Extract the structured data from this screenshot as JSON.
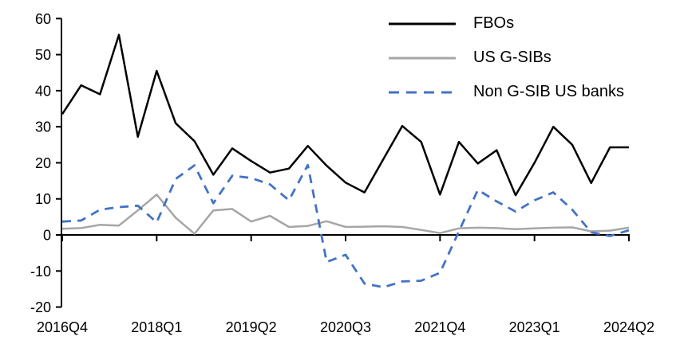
{
  "chart_data": {
    "type": "line",
    "title": "",
    "xlabel": "",
    "ylabel": "",
    "grid": false,
    "legend_position": "top-right",
    "ylim": [
      -20,
      60
    ],
    "y_ticks": [
      60,
      50,
      40,
      30,
      20,
      10,
      0,
      -10,
      -20
    ],
    "x_tick_labels": [
      "2016Q4",
      "2018Q1",
      "2019Q2",
      "2020Q3",
      "2021Q4",
      "2023Q1",
      "2024Q2"
    ],
    "x_tick_every": 5,
    "categories": [
      "2016Q4",
      "2017Q1",
      "2017Q2",
      "2017Q3",
      "2017Q4",
      "2018Q1",
      "2018Q2",
      "2018Q3",
      "2018Q4",
      "2019Q1",
      "2019Q2",
      "2019Q3",
      "2019Q4",
      "2020Q1",
      "2020Q2",
      "2020Q3",
      "2020Q4",
      "2021Q1",
      "2021Q2",
      "2021Q3",
      "2021Q4",
      "2022Q1",
      "2022Q2",
      "2022Q3",
      "2022Q4",
      "2023Q1",
      "2023Q2",
      "2023Q3",
      "2023Q4",
      "2024Q1",
      "2024Q2"
    ],
    "series": [
      {
        "name": "FBOs",
        "color": "#000000",
        "style": "solid",
        "values": [
          33.5,
          41.5,
          39.0,
          55.5,
          27.2,
          45.5,
          31.0,
          26.0,
          16.7,
          24.0,
          20.5,
          17.3,
          18.4,
          24.7,
          19.2,
          14.5,
          11.8,
          21.0,
          30.2,
          25.8,
          11.2,
          25.8,
          19.8,
          23.5,
          11.0,
          20.0,
          30.0,
          25.0,
          14.4,
          24.3,
          24.3
        ]
      },
      {
        "name": "US G-SIBs",
        "color": "#a6a6a6",
        "style": "solid",
        "values": [
          1.7,
          1.9,
          2.8,
          2.6,
          6.8,
          11.2,
          4.8,
          0.3,
          6.8,
          7.2,
          3.7,
          5.3,
          2.2,
          2.5,
          3.8,
          2.2,
          2.3,
          2.4,
          2.2,
          1.4,
          0.5,
          1.8,
          2.0,
          1.9,
          1.6,
          1.8,
          2.0,
          2.1,
          1.0,
          1.2,
          2.0
        ]
      },
      {
        "name": "Non G-SIB US banks",
        "color": "#4472c4",
        "style": "dashed",
        "values": [
          3.7,
          4.0,
          7.0,
          7.7,
          8.1,
          3.5,
          15.5,
          19.3,
          8.8,
          16.4,
          15.8,
          14.0,
          9.6,
          19.4,
          -7.5,
          -5.5,
          -13.5,
          -14.5,
          -12.9,
          -12.7,
          -10.5,
          1.0,
          12.5,
          9.3,
          6.5,
          9.6,
          11.8,
          7.0,
          0.7,
          -0.3,
          1.3
        ]
      }
    ]
  }
}
